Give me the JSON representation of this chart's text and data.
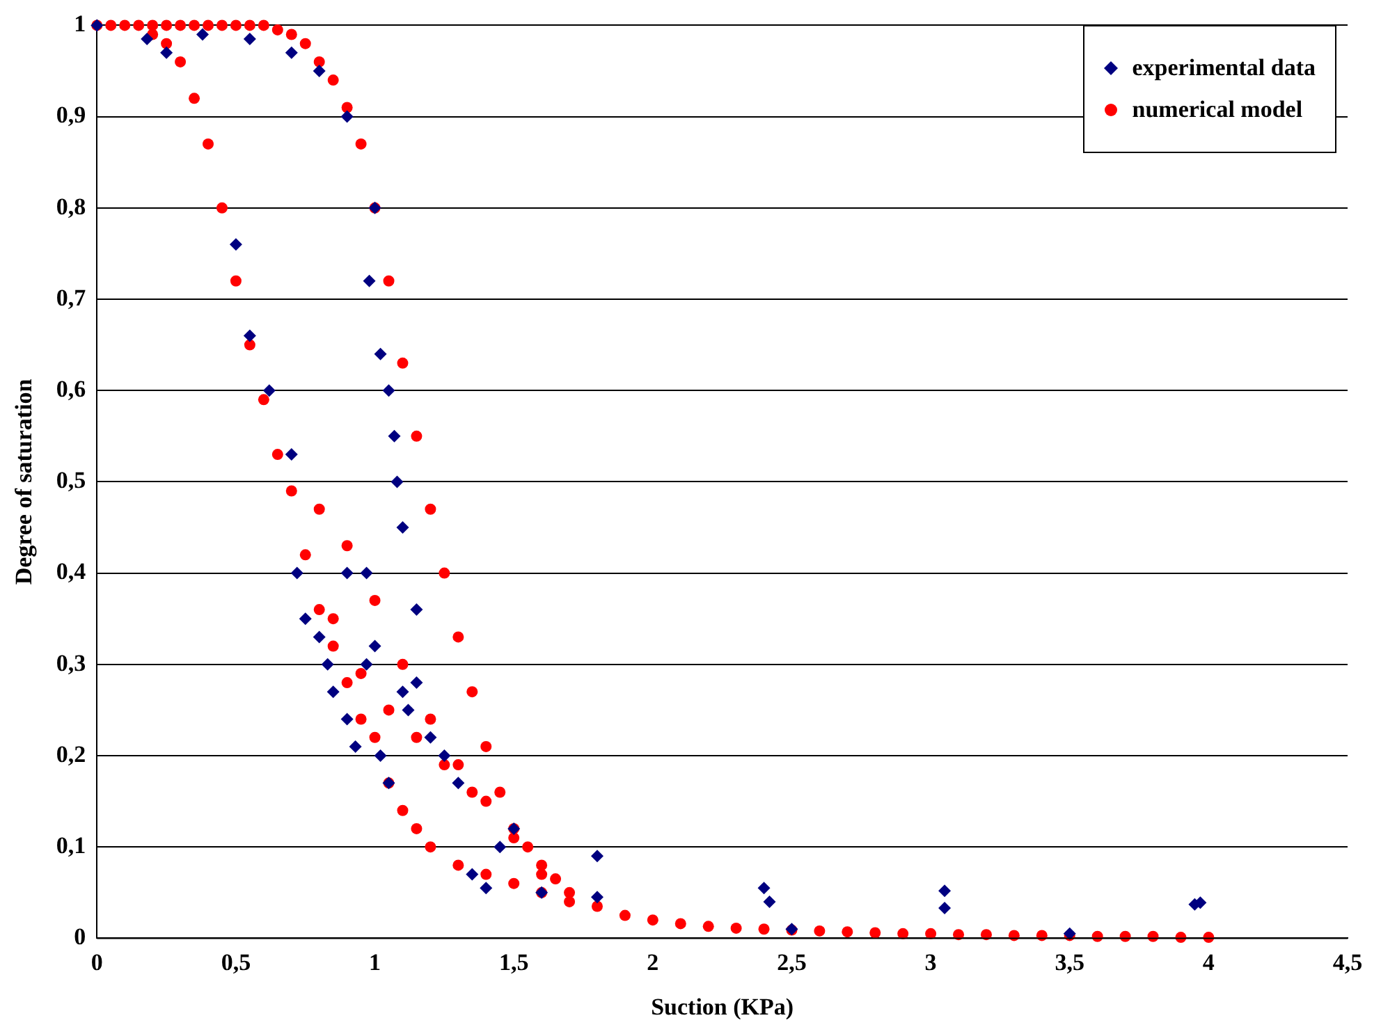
{
  "chart_data": {
    "type": "scatter",
    "xlabel": "Suction (KPa)",
    "ylabel": "Degree of saturation",
    "xlim": [
      0,
      4.5
    ],
    "ylim": [
      0,
      1
    ],
    "xticks": [
      0,
      {
        "value": 0.5,
        "label": "0,5"
      },
      1,
      {
        "value": 1.5,
        "label": "1,5"
      },
      2,
      {
        "value": 2.5,
        "label": "2,5"
      },
      3,
      {
        "value": 3.5,
        "label": "3,5"
      },
      4,
      {
        "value": 4.5,
        "label": "4,5"
      }
    ],
    "yticks": [
      0,
      {
        "value": 0.1,
        "label": "0,1"
      },
      {
        "value": 0.2,
        "label": "0,2"
      },
      {
        "value": 0.3,
        "label": "0,3"
      },
      {
        "value": 0.4,
        "label": "0,4"
      },
      {
        "value": 0.5,
        "label": "0,5"
      },
      {
        "value": 0.6,
        "label": "0,6"
      },
      {
        "value": 0.7,
        "label": "0,7"
      },
      {
        "value": 0.8,
        "label": "0,8"
      },
      {
        "value": 0.9,
        "label": "0,9"
      },
      1
    ],
    "grid": "y",
    "legend": "top right",
    "series": [
      {
        "name": "experimental data",
        "color": "#000080",
        "marker": "diamond",
        "x": [
          0,
          0.18,
          0.25,
          0.38,
          0.55,
          0.7,
          0.8,
          0.9,
          1.0,
          0.98,
          1.02,
          1.05,
          1.07,
          1.08,
          1.1,
          1.15,
          0.5,
          0.55,
          0.62,
          0.7,
          0.72,
          0.75,
          0.8,
          0.83,
          0.85,
          0.9,
          0.93,
          0.97,
          1.0,
          1.02,
          1.05,
          0.9,
          0.97,
          1.1,
          1.12,
          1.15,
          1.2,
          1.25,
          1.3,
          1.35,
          1.4,
          1.45,
          1.5,
          1.6,
          1.8,
          1.8,
          2.4,
          2.42,
          2.5,
          3.05,
          3.05,
          3.5,
          3.95,
          3.97
        ],
        "values": [
          1,
          0.985,
          0.97,
          0.99,
          0.985,
          0.97,
          0.95,
          0.9,
          0.8,
          0.72,
          0.64,
          0.6,
          0.55,
          0.5,
          0.45,
          0.36,
          0.76,
          0.66,
          0.6,
          0.53,
          0.4,
          0.35,
          0.33,
          0.3,
          0.27,
          0.24,
          0.21,
          0.3,
          0.32,
          0.2,
          0.17,
          0.4,
          0.4,
          0.27,
          0.25,
          0.28,
          0.22,
          0.2,
          0.17,
          0.07,
          0.055,
          0.1,
          0.12,
          0.05,
          0.09,
          0.045,
          0.055,
          0.04,
          0.01,
          0.052,
          0.033,
          0.005,
          0.037,
          0.039
        ]
      },
      {
        "name": "numerical model",
        "color": "#ff0000",
        "marker": "circle",
        "x": [
          0,
          0.05,
          0.1,
          0.15,
          0.2,
          0.25,
          0.3,
          0.35,
          0.4,
          0.45,
          0.5,
          0.55,
          0.6,
          0.65,
          0.7,
          0.75,
          0.8,
          0.85,
          0.9,
          0.95,
          1.0,
          1.05,
          1.1,
          1.15,
          1.2,
          1.25,
          1.3,
          1.35,
          1.4,
          1.45,
          1.5,
          1.55,
          1.6,
          1.65,
          1.7,
          1.8,
          1.9,
          2.0,
          2.1,
          2.2,
          2.3,
          2.4,
          2.5,
          2.6,
          2.7,
          2.8,
          2.9,
          3.0,
          3.1,
          3.2,
          3.3,
          3.4,
          3.5,
          3.6,
          3.7,
          3.8,
          3.9,
          4.0,
          0.2,
          0.25,
          0.3,
          0.35,
          0.4,
          0.45,
          0.5,
          0.55,
          0.6,
          0.65,
          0.7,
          0.75,
          0.8,
          0.85,
          0.9,
          0.95,
          1.0,
          1.05,
          1.1,
          1.15,
          1.2,
          1.3,
          1.4,
          1.5,
          1.6,
          1.7,
          0.8,
          0.9,
          1.0,
          1.1,
          1.2,
          1.3,
          1.4,
          1.5,
          1.6,
          0.85,
          0.95,
          1.05,
          1.15,
          1.25,
          1.35
        ],
        "values": [
          1,
          1,
          1,
          1,
          1,
          1,
          1,
          1,
          1,
          1,
          1,
          1,
          1,
          0.995,
          0.99,
          0.98,
          0.96,
          0.94,
          0.91,
          0.87,
          0.8,
          0.72,
          0.63,
          0.55,
          0.47,
          0.4,
          0.33,
          0.27,
          0.21,
          0.16,
          0.12,
          0.1,
          0.08,
          0.065,
          0.05,
          0.035,
          0.025,
          0.02,
          0.016,
          0.013,
          0.011,
          0.01,
          0.009,
          0.008,
          0.007,
          0.006,
          0.005,
          0.005,
          0.004,
          0.004,
          0.003,
          0.003,
          0.003,
          0.002,
          0.002,
          0.002,
          0.001,
          0.001,
          0.99,
          0.98,
          0.96,
          0.92,
          0.87,
          0.8,
          0.72,
          0.65,
          0.59,
          0.53,
          0.49,
          0.42,
          0.36,
          0.32,
          0.28,
          0.24,
          0.22,
          0.17,
          0.14,
          0.12,
          0.1,
          0.08,
          0.07,
          0.06,
          0.05,
          0.04,
          0.47,
          0.43,
          0.37,
          0.3,
          0.24,
          0.19,
          0.15,
          0.11,
          0.07,
          0.35,
          0.29,
          0.25,
          0.22,
          0.19,
          0.16
        ]
      }
    ]
  }
}
